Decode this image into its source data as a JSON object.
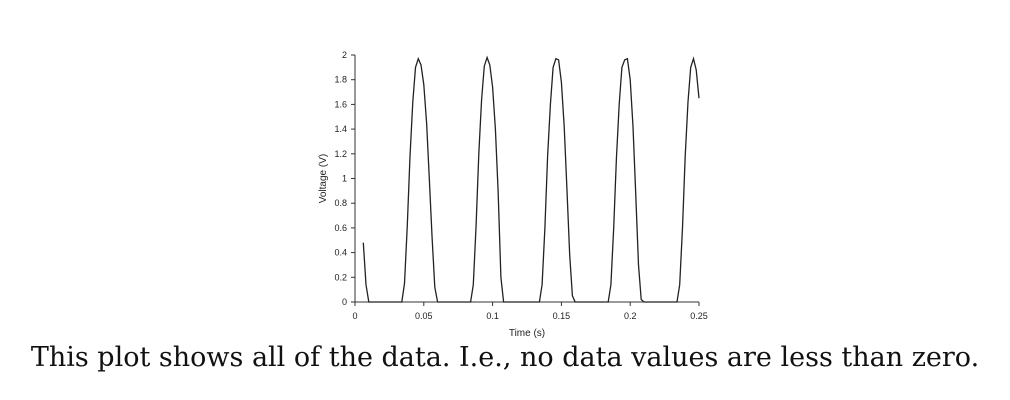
{
  "caption": "This plot shows all of the data.  I.e., no data values are less than zero.",
  "chart_data": {
    "type": "line",
    "title": "",
    "xlabel": "Time (s)",
    "ylabel": "Voltage (V)",
    "xlim": [
      0,
      0.25
    ],
    "ylim": [
      0,
      2
    ],
    "xticks": [
      0,
      0.05,
      0.1,
      0.15,
      0.2,
      0.25
    ],
    "xtick_labels": [
      "0",
      "0.05",
      "0.1",
      "0.15",
      "0.2",
      "0.25"
    ],
    "yticks": [
      0,
      0.2,
      0.4,
      0.6,
      0.8,
      1,
      1.2,
      1.4,
      1.6,
      1.8,
      2
    ],
    "ytick_labels": [
      "0",
      "0.2",
      "0.4",
      "0.6",
      "0.8",
      "1",
      "1.2",
      "1.4",
      "1.6",
      "1.8",
      "2"
    ],
    "grid": false,
    "line_color": "#222222",
    "series": [
      {
        "x": [
          0.006,
          0.008,
          0.01,
          0.034,
          0.036,
          0.038,
          0.04,
          0.042,
          0.044,
          0.046,
          0.048,
          0.05,
          0.052,
          0.054,
          0.056,
          0.058,
          0.06,
          0.084,
          0.086,
          0.088,
          0.09,
          0.092,
          0.094,
          0.096,
          0.098,
          0.1,
          0.102,
          0.104,
          0.106,
          0.108,
          0.11,
          0.134,
          0.136,
          0.138,
          0.14,
          0.142,
          0.144,
          0.146,
          0.148,
          0.15,
          0.152,
          0.154,
          0.156,
          0.158,
          0.16,
          0.184,
          0.186,
          0.188,
          0.19,
          0.192,
          0.194,
          0.196,
          0.198,
          0.2,
          0.202,
          0.204,
          0.206,
          0.208,
          0.21,
          0.234,
          0.236,
          0.238,
          0.24,
          0.242,
          0.244,
          0.246,
          0.248,
          0.25
        ],
        "y": [
          0.48,
          0.14,
          0.0,
          0.0,
          0.15,
          0.62,
          1.18,
          1.62,
          1.9,
          1.97,
          1.92,
          1.76,
          1.45,
          1.0,
          0.52,
          0.12,
          0.0,
          0.0,
          0.14,
          0.62,
          1.2,
          1.64,
          1.91,
          1.98,
          1.92,
          1.74,
          1.4,
          0.9,
          0.2,
          0.0,
          0.0,
          0.0,
          0.14,
          0.6,
          1.18,
          1.6,
          1.9,
          1.97,
          1.96,
          1.78,
          1.42,
          0.92,
          0.38,
          0.05,
          0.0,
          0.0,
          0.14,
          0.6,
          1.16,
          1.6,
          1.9,
          1.96,
          1.97,
          1.8,
          1.42,
          0.88,
          0.3,
          0.02,
          0.0,
          0.0,
          0.14,
          0.6,
          1.18,
          1.62,
          1.9,
          1.97,
          1.88,
          1.65
        ]
      }
    ]
  }
}
